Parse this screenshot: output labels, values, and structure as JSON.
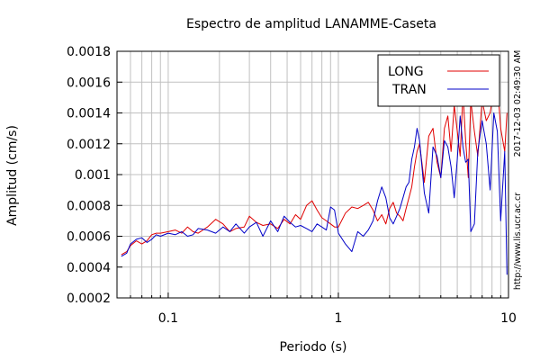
{
  "chart_data": {
    "type": "line",
    "title": "Espectro de amplitud LANAMME-Caseta",
    "xlabel": "Periodo (s)",
    "ylabel": "Amplitud (cm/s)",
    "xscale": "log",
    "xlim": [
      0.05,
      10
    ],
    "ylim": [
      0.0002,
      0.0018
    ],
    "x_ticks": [
      {
        "value": 0.1,
        "label": "0.1"
      },
      {
        "value": 1,
        "label": "1"
      },
      {
        "value": 10,
        "label": "10"
      }
    ],
    "y_ticks": [
      {
        "value": 0.0002,
        "label": "0.0002"
      },
      {
        "value": 0.0004,
        "label": "0.0004"
      },
      {
        "value": 0.0006,
        "label": "0.0006"
      },
      {
        "value": 0.0008,
        "label": "0.0008"
      },
      {
        "value": 0.001,
        "label": "0.001"
      },
      {
        "value": 0.0012,
        "label": "0.0012"
      },
      {
        "value": 0.0014,
        "label": "0.0014"
      },
      {
        "value": 0.0016,
        "label": "0.0016"
      },
      {
        "value": 0.0018,
        "label": "0.0018"
      }
    ],
    "grid": true,
    "legend_position": "top-right",
    "series": [
      {
        "name": "LONG",
        "color": "#e00000",
        "x": [
          0.053,
          0.057,
          0.06,
          0.065,
          0.07,
          0.075,
          0.08,
          0.085,
          0.09,
          0.1,
          0.11,
          0.12,
          0.13,
          0.14,
          0.15,
          0.17,
          0.19,
          0.21,
          0.23,
          0.25,
          0.28,
          0.3,
          0.33,
          0.36,
          0.4,
          0.44,
          0.48,
          0.52,
          0.56,
          0.6,
          0.65,
          0.7,
          0.75,
          0.8,
          0.85,
          0.9,
          0.95,
          1.0,
          1.1,
          1.2,
          1.3,
          1.4,
          1.5,
          1.6,
          1.7,
          1.8,
          1.9,
          2.0,
          2.1,
          2.2,
          2.3,
          2.4,
          2.5,
          2.6,
          2.7,
          2.8,
          2.9,
          3.0,
          3.2,
          3.4,
          3.6,
          3.8,
          4.0,
          4.2,
          4.4,
          4.6,
          4.8,
          5.0,
          5.2,
          5.4,
          5.6,
          5.8,
          6.0,
          6.3,
          6.6,
          7.0,
          7.4,
          7.8,
          8.2,
          8.6,
          9.0,
          9.5,
          9.8
        ],
        "y": [
          0.00048,
          0.0005,
          0.00054,
          0.00057,
          0.00055,
          0.00057,
          0.00061,
          0.00062,
          0.00062,
          0.00063,
          0.00064,
          0.00062,
          0.00066,
          0.00063,
          0.00062,
          0.00066,
          0.00071,
          0.00068,
          0.00063,
          0.00065,
          0.00066,
          0.00073,
          0.00069,
          0.00067,
          0.00068,
          0.00065,
          0.00071,
          0.00068,
          0.00074,
          0.00071,
          0.0008,
          0.00083,
          0.00077,
          0.00072,
          0.0007,
          0.00068,
          0.00066,
          0.00066,
          0.00075,
          0.00079,
          0.00078,
          0.0008,
          0.00082,
          0.00077,
          0.0007,
          0.00074,
          0.00068,
          0.00078,
          0.00082,
          0.00075,
          0.00073,
          0.0007,
          0.00078,
          0.00085,
          0.00092,
          0.00105,
          0.00115,
          0.0012,
          0.00095,
          0.00125,
          0.0013,
          0.00108,
          0.00098,
          0.0013,
          0.00138,
          0.00115,
          0.00145,
          0.00128,
          0.00112,
          0.00153,
          0.00122,
          0.00098,
          0.00148,
          0.00128,
          0.00112,
          0.00148,
          0.00135,
          0.0014,
          0.00155,
          0.0016,
          0.0013,
          0.00115,
          0.0014
        ]
      },
      {
        "name": "TRAN",
        "color": "#0000c8",
        "x": [
          0.053,
          0.057,
          0.06,
          0.065,
          0.07,
          0.075,
          0.08,
          0.085,
          0.09,
          0.1,
          0.11,
          0.12,
          0.13,
          0.14,
          0.15,
          0.17,
          0.19,
          0.21,
          0.23,
          0.25,
          0.28,
          0.3,
          0.33,
          0.36,
          0.4,
          0.44,
          0.48,
          0.52,
          0.56,
          0.6,
          0.65,
          0.7,
          0.75,
          0.8,
          0.85,
          0.9,
          0.95,
          1.0,
          1.1,
          1.2,
          1.3,
          1.4,
          1.5,
          1.6,
          1.7,
          1.8,
          1.9,
          2.0,
          2.1,
          2.2,
          2.3,
          2.4,
          2.5,
          2.6,
          2.7,
          2.8,
          2.9,
          3.0,
          3.2,
          3.4,
          3.6,
          3.8,
          4.0,
          4.2,
          4.4,
          4.6,
          4.8,
          5.0,
          5.2,
          5.4,
          5.6,
          5.8,
          6.0,
          6.3,
          6.6,
          7.0,
          7.4,
          7.8,
          8.2,
          8.6,
          9.0,
          9.5,
          9.8
        ],
        "y": [
          0.00047,
          0.00049,
          0.00055,
          0.00058,
          0.00059,
          0.00056,
          0.00058,
          0.00061,
          0.0006,
          0.00062,
          0.00061,
          0.00063,
          0.0006,
          0.00061,
          0.00065,
          0.00064,
          0.00062,
          0.00066,
          0.00063,
          0.00068,
          0.00062,
          0.00066,
          0.00069,
          0.0006,
          0.0007,
          0.00063,
          0.00073,
          0.00069,
          0.00066,
          0.00067,
          0.00065,
          0.00063,
          0.00068,
          0.00066,
          0.00064,
          0.00079,
          0.00077,
          0.00062,
          0.00055,
          0.0005,
          0.00063,
          0.0006,
          0.00064,
          0.0007,
          0.00083,
          0.00092,
          0.00085,
          0.00072,
          0.00068,
          0.00073,
          0.00078,
          0.00085,
          0.00092,
          0.00095,
          0.0011,
          0.00118,
          0.0013,
          0.00122,
          0.00088,
          0.00075,
          0.00118,
          0.00112,
          0.00098,
          0.00122,
          0.00118,
          0.00105,
          0.00085,
          0.0011,
          0.00138,
          0.00118,
          0.00108,
          0.0011,
          0.00063,
          0.00068,
          0.00115,
          0.00135,
          0.0012,
          0.0009,
          0.0014,
          0.00128,
          0.0007,
          0.00115,
          0.00035
        ]
      }
    ]
  },
  "side_labels": {
    "timestamp": "2017-12-03 02:49:30 AM",
    "website": "http://www.lis.ucr.ac.cr"
  }
}
